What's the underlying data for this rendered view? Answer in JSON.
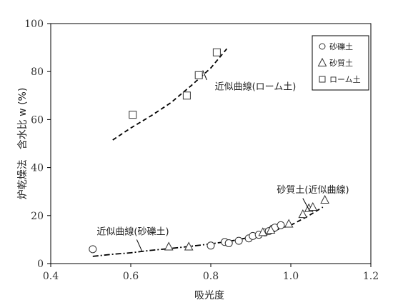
{
  "chart_data": {
    "type": "scatter",
    "xlabel": "吸光度",
    "ylabel": "炉乾燥法　含水比 w (%)",
    "xlim": [
      0.4,
      1.2
    ],
    "ylim": [
      0,
      100
    ],
    "xticks": [
      "0.4",
      "0.6",
      "0.8",
      "1.0",
      "1.2"
    ],
    "yticks": [
      "0",
      "20",
      "40",
      "60",
      "80",
      "100"
    ],
    "grid": false,
    "legend_position": "top-right",
    "series": [
      {
        "name": "砂礫土",
        "marker": "circle",
        "points": [
          [
            0.505,
            6
          ],
          [
            0.8,
            7.5
          ],
          [
            0.835,
            9
          ],
          [
            0.845,
            8.5
          ],
          [
            0.87,
            9.5
          ],
          [
            0.895,
            10.5
          ],
          [
            0.905,
            11.5
          ],
          [
            0.92,
            12
          ],
          [
            0.935,
            13
          ],
          [
            0.945,
            13.5
          ],
          [
            0.955,
            14.5
          ],
          [
            0.96,
            15
          ],
          [
            0.975,
            16
          ]
        ]
      },
      {
        "name": "砂質土",
        "marker": "triangle",
        "points": [
          [
            0.695,
            7
          ],
          [
            0.745,
            7
          ],
          [
            0.93,
            13
          ],
          [
            0.95,
            14
          ],
          [
            0.995,
            16.5
          ],
          [
            1.03,
            20.5
          ],
          [
            1.045,
            23
          ],
          [
            1.055,
            23.5
          ],
          [
            1.085,
            26.5
          ]
        ]
      },
      {
        "name": "ローム土",
        "marker": "square",
        "points": [
          [
            0.605,
            62
          ],
          [
            0.74,
            70
          ],
          [
            0.77,
            78.5
          ],
          [
            0.815,
            88
          ]
        ]
      }
    ],
    "curves": [
      {
        "style": "dashed",
        "points": [
          [
            0.555,
            51.5
          ],
          [
            0.6,
            56.5
          ],
          [
            0.65,
            61.5
          ],
          [
            0.7,
            67
          ],
          [
            0.75,
            74
          ],
          [
            0.8,
            81.5
          ],
          [
            0.84,
            89.5
          ]
        ]
      },
      {
        "style": "dash-dot",
        "points": [
          [
            0.505,
            3
          ],
          [
            0.55,
            3.8
          ],
          [
            0.6,
            4.5
          ],
          [
            0.65,
            5.5
          ],
          [
            0.7,
            6.3
          ],
          [
            0.75,
            7.2
          ],
          [
            0.8,
            8.2
          ],
          [
            0.85,
            9.4
          ],
          [
            0.9,
            11
          ],
          [
            0.95,
            13.2
          ],
          [
            1.0,
            16
          ]
        ]
      },
      {
        "style": "dashed",
        "points": [
          [
            1.0,
            16
          ],
          [
            1.04,
            19.5
          ],
          [
            1.08,
            23.5
          ]
        ]
      }
    ],
    "annotations": [
      {
        "text": "近似曲線(ローム土)",
        "x": 0.81,
        "y": 72.5,
        "target": [
          0.785,
          80.5
        ]
      },
      {
        "text": "砂質土(近似曲線)",
        "x": 0.965,
        "y": 29.5,
        "target": [
          1.045,
          21.5
        ]
      },
      {
        "text": "近似曲線(砂礫土)",
        "x": 0.515,
        "y": 12,
        "target": [
          0.63,
          5
        ]
      }
    ]
  }
}
